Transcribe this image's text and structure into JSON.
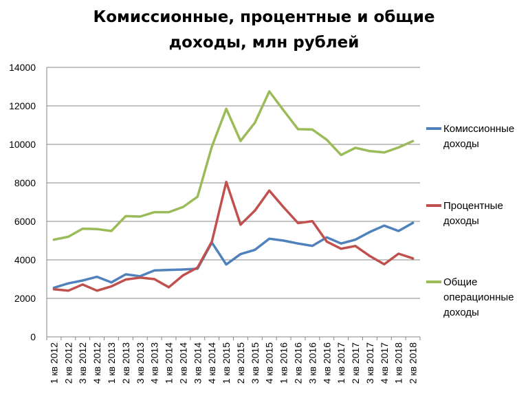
{
  "chart_data": {
    "type": "line",
    "title": "Комиссионные, процентные и общие доходы, млн рублей",
    "title_lines": [
      "Комиссионные, процентные и общие",
      "доходы, млн рублей"
    ],
    "xlabel": "",
    "ylabel": "",
    "ylim": [
      0,
      14000
    ],
    "yticks": [
      0,
      2000,
      4000,
      6000,
      8000,
      10000,
      12000,
      14000
    ],
    "grid": true,
    "legend_position": "right",
    "categories": [
      "1 кв 2012",
      "2 кв 2012",
      "3 кв 2012",
      "4 кв 2012",
      "1 кв 2013",
      "2 кв 2013",
      "3 кв 2013",
      "4 кв 2013",
      "1 кв 2014",
      "2 кв 2014",
      "3 кв 2014",
      "4 кв 2014",
      "1 кв 2015",
      "2 кв 2015",
      "3 кв 2015",
      "4 кв 2015",
      "1 кв 2016",
      "2 кв 2016",
      "3 кв 2016",
      "4 кв 2016",
      "1 кв 2017",
      "2 кв 2017",
      "3 кв 2017",
      "4 кв 2017",
      "1 кв 2018",
      "2 кв 2018"
    ],
    "series": [
      {
        "name": "Комиссионные доходы",
        "legend_lines": [
          "Комиссионные",
          "доходы"
        ],
        "color": "#4f81bd",
        "values": [
          2550,
          2780,
          2930,
          3120,
          2830,
          3250,
          3150,
          3450,
          3480,
          3500,
          3540,
          4900,
          3760,
          4300,
          4520,
          5100,
          5000,
          4850,
          4730,
          5170,
          4850,
          5050,
          5450,
          5780,
          5500,
          5920
        ]
      },
      {
        "name": "Процентные доходы",
        "legend_lines": [
          "Процентные",
          "доходы"
        ],
        "color": "#c0504d",
        "values": [
          2470,
          2400,
          2720,
          2400,
          2620,
          2980,
          3080,
          3000,
          2580,
          3200,
          3600,
          4950,
          8050,
          5830,
          6560,
          7600,
          6730,
          5910,
          6010,
          4950,
          4580,
          4720,
          4200,
          3770,
          4320,
          4080
        ]
      },
      {
        "name": "Общие операционные доходы",
        "legend_lines": [
          "Общие",
          "операционные",
          "доходы"
        ],
        "color": "#9bbb59",
        "values": [
          5050,
          5200,
          5620,
          5600,
          5500,
          6270,
          6250,
          6480,
          6480,
          6750,
          7280,
          9890,
          11850,
          10180,
          11130,
          12750,
          11760,
          10790,
          10770,
          10240,
          9450,
          9820,
          9650,
          9580,
          9840,
          10170
        ]
      }
    ]
  }
}
